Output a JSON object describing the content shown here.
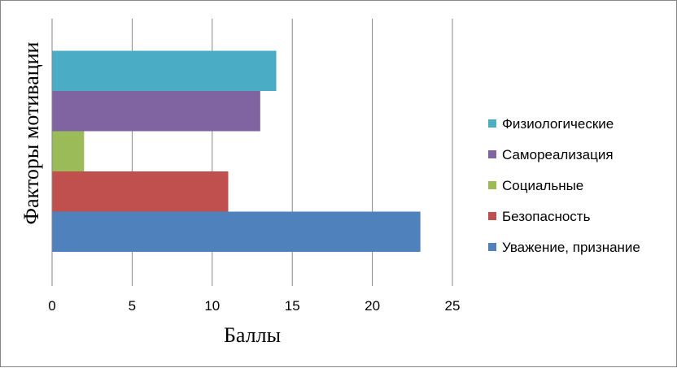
{
  "chart_data": {
    "type": "bar",
    "orientation": "horizontal",
    "xlabel": "Баллы",
    "ylabel": "Факторы мотивации",
    "xlim": [
      0,
      25
    ],
    "xticks": [
      0,
      5,
      10,
      15,
      20,
      25
    ],
    "grid": "vertical",
    "legend_position": "right",
    "series": [
      {
        "name": "Уважение, признание",
        "value": 23,
        "color": "#4F81BD"
      },
      {
        "name": "Безопасность",
        "value": 11,
        "color": "#C0504D"
      },
      {
        "name": "Социальные",
        "value": 2,
        "color": "#9BBB59"
      },
      {
        "name": "Самореализация",
        "value": 13,
        "color": "#8064A2"
      },
      {
        "name": "Физиологические",
        "value": 14,
        "color": "#4BACC6"
      }
    ]
  }
}
